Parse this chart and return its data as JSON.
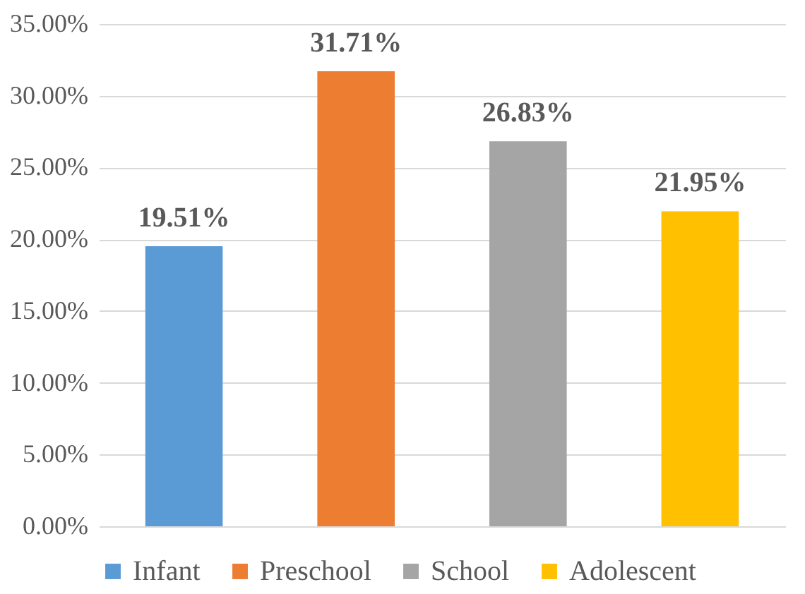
{
  "chart_data": {
    "type": "bar",
    "categories": [
      null,
      null,
      null,
      null
    ],
    "series": [
      {
        "name": "Infant",
        "color": "#5b9bd5",
        "values": [
          19.51,
          null,
          null,
          null
        ],
        "value_labels": [
          "19.51%",
          null,
          null,
          null
        ]
      },
      {
        "name": "Preschool",
        "color": "#ed7d31",
        "values": [
          null,
          31.71,
          null,
          null
        ],
        "value_labels": [
          null,
          "31.71%",
          null,
          null
        ]
      },
      {
        "name": "School",
        "color": "#a5a5a5",
        "values": [
          null,
          null,
          26.83,
          null
        ],
        "value_labels": [
          null,
          null,
          "26.83%",
          null
        ]
      },
      {
        "name": "Adolescent",
        "color": "#ffc000",
        "values": [
          null,
          null,
          null,
          21.95
        ],
        "value_labels": [
          null,
          null,
          null,
          "21.95%"
        ]
      }
    ],
    "ylim": [
      0,
      35
    ],
    "yticks": [
      {
        "value": 0,
        "label": "0.00%"
      },
      {
        "value": 5,
        "label": "5.00%"
      },
      {
        "value": 10,
        "label": "10.00%"
      },
      {
        "value": 15,
        "label": "15.00%"
      },
      {
        "value": 20,
        "label": "20.00%"
      },
      {
        "value": 25,
        "label": "25.00%"
      },
      {
        "value": 30,
        "label": "30.00%"
      },
      {
        "value": 35,
        "label": "35.00%"
      }
    ],
    "grid": "y",
    "legend": "bottom"
  }
}
